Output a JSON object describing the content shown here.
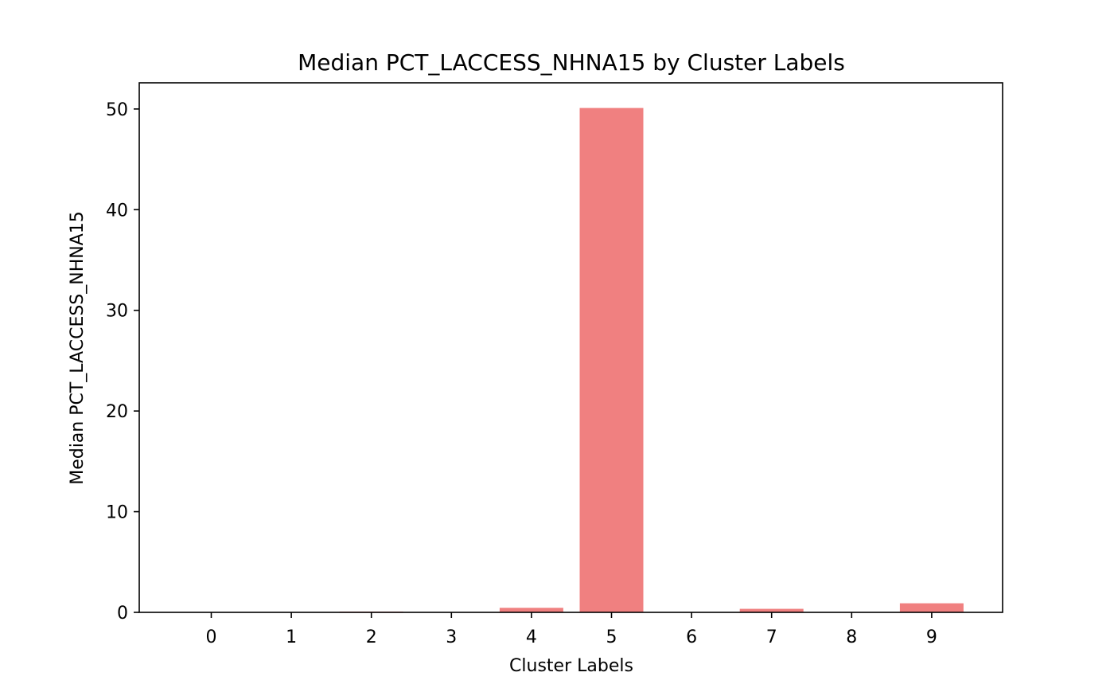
{
  "chart_data": {
    "type": "bar",
    "title": "Median PCT_LACCESS_NHNA15 by Cluster Labels",
    "xlabel": "Cluster Labels",
    "ylabel": "Median PCT_LACCESS_NHNA15",
    "categories": [
      "0",
      "1",
      "2",
      "3",
      "4",
      "5",
      "6",
      "7",
      "8",
      "9"
    ],
    "values": [
      0.0,
      0.0,
      0.08,
      0.0,
      0.45,
      50.1,
      0.0,
      0.35,
      0.0,
      0.9
    ],
    "ylim": [
      0,
      52.6
    ],
    "yticks": [
      0,
      10,
      20,
      30,
      40,
      50
    ],
    "bar_color": "#f08080",
    "grid": false,
    "legend": "none"
  }
}
